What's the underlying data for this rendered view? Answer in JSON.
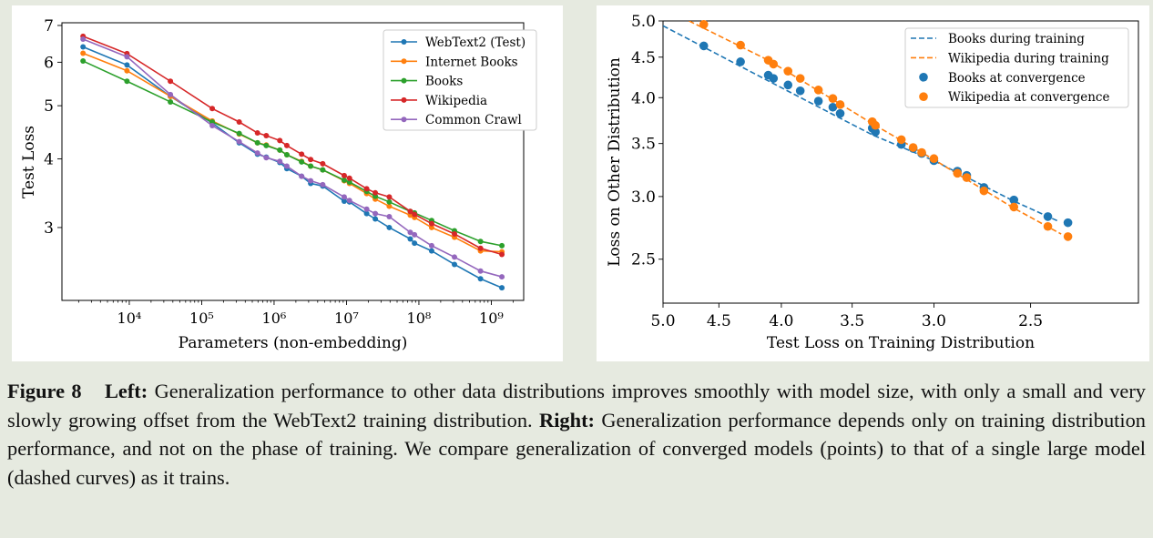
{
  "caption": {
    "figure_label": "Figure 8",
    "left_label": "Left:",
    "left_text": "Generalization performance to other data distributions improves smoothly with model size, with only a small and very slowly growing offset from the WebText2 training distribution.",
    "right_label": "Right:",
    "right_text": "Generalization performance depends only on training distribution performance, and not on the phase of training. We compare generalization of converged models (points) to that of a single large model (dashed curves) as it trains."
  },
  "chart_data": [
    {
      "type": "line",
      "xlabel": "Parameters (non-embedding)",
      "ylabel": "Test Loss",
      "xscale": "log",
      "yscale": "log",
      "xlim": [
        1175,
        2800000000.0
      ],
      "ylim": [
        2.21,
        7.08
      ],
      "x_ticks": [
        10000.0,
        100000.0,
        1000000.0,
        10000000.0,
        100000000.0,
        1000000000.0
      ],
      "x_tick_labels": [
        "10⁴",
        "10⁵",
        "10⁶",
        "10⁷",
        "10⁸",
        "10⁹"
      ],
      "y_ticks": [
        3,
        4,
        5,
        6,
        7
      ],
      "y_tick_labels": [
        "3",
        "4",
        "5",
        "6",
        "7"
      ],
      "grid": false,
      "legend_position": "top-right",
      "x": [
        2300.0,
        9300.0,
        37000.0,
        140000.0,
        330000.0,
        590000.0,
        780000.0,
        1200000.0,
        1500000.0,
        2400000.0,
        3200000.0,
        4700000.0,
        9300000.0,
        11000000.0,
        19000000.0,
        25000000.0,
        39000000.0,
        76000000.0,
        87000000.0,
        150000000.0,
        310000000.0,
        710000000.0,
        1400000000.0
      ],
      "series": [
        {
          "name": "WebText2 (Test)",
          "color": "#1f77b4",
          "values": [
            6.4,
            5.93,
            5.2,
            4.65,
            4.28,
            4.08,
            4.03,
            3.94,
            3.84,
            3.72,
            3.61,
            3.57,
            3.35,
            3.34,
            3.18,
            3.11,
            3.0,
            2.86,
            2.81,
            2.72,
            2.57,
            2.42,
            2.33
          ]
        },
        {
          "name": "Internet Books",
          "color": "#ff7f0e",
          "values": [
            6.23,
            5.79,
            5.2,
            4.69,
            4.44,
            4.28,
            4.24,
            4.15,
            4.07,
            3.96,
            3.88,
            3.82,
            3.65,
            3.61,
            3.46,
            3.38,
            3.28,
            3.16,
            3.13,
            3.0,
            2.88,
            2.72,
            2.71
          ]
        },
        {
          "name": "Books",
          "color": "#2ca02c",
          "values": [
            6.03,
            5.54,
            5.08,
            4.67,
            4.45,
            4.28,
            4.23,
            4.15,
            4.07,
            3.95,
            3.88,
            3.82,
            3.66,
            3.63,
            3.49,
            3.42,
            3.34,
            3.21,
            3.19,
            3.09,
            2.96,
            2.83,
            2.78
          ]
        },
        {
          "name": "Wikipedia",
          "color": "#d62728",
          "values": [
            6.69,
            6.22,
            5.54,
            4.94,
            4.67,
            4.46,
            4.41,
            4.32,
            4.23,
            4.08,
            3.99,
            3.92,
            3.73,
            3.69,
            3.53,
            3.47,
            3.41,
            3.21,
            3.17,
            3.05,
            2.92,
            2.75,
            2.68
          ]
        },
        {
          "name": "Common Crawl",
          "color": "#9467bd",
          "values": [
            6.61,
            6.14,
            5.24,
            4.6,
            4.3,
            4.1,
            4.02,
            3.96,
            3.88,
            3.72,
            3.65,
            3.59,
            3.41,
            3.36,
            3.24,
            3.18,
            3.14,
            2.94,
            2.91,
            2.78,
            2.65,
            2.5,
            2.44
          ]
        }
      ]
    },
    {
      "type": "scatter",
      "xlabel": "Test Loss on Training Distribution",
      "ylabel": "Loss on Other Distribution",
      "xscale": "log",
      "yscale": "log",
      "x_inverted": true,
      "xlim": [
        5.0,
        2.04
      ],
      "ylim": [
        2.2,
        5.0
      ],
      "x_ticks": [
        5.0,
        4.5,
        4.0,
        3.5,
        3.0,
        2.5
      ],
      "x_tick_labels": [
        "5.0",
        "4.5",
        "4.0",
        "3.5",
        "3.0",
        "2.5"
      ],
      "y_ticks": [
        2.5,
        3.0,
        3.5,
        4.0,
        4.5,
        5.0
      ],
      "y_tick_labels": [
        "2.5",
        "3.0",
        "3.5",
        "4.0",
        "4.5",
        "5.0"
      ],
      "grid": false,
      "legend_position": "top-right",
      "lines": [
        {
          "name": "Books during training",
          "color": "#1f77b4",
          "style": "dashed",
          "points": [
            [
              5.0,
              4.93
            ],
            [
              4.1,
              4.2
            ],
            [
              3.37,
              3.59
            ],
            [
              3.0,
              3.33
            ],
            [
              2.58,
              2.96
            ],
            [
              2.37,
              2.79
            ]
          ]
        },
        {
          "name": "Wikipedia during training",
          "color": "#ff7f0e",
          "style": "dashed",
          "points": [
            [
              4.76,
              5.0
            ],
            [
              4.1,
              4.46
            ],
            [
              3.37,
              3.71
            ],
            [
              3.0,
              3.34
            ],
            [
              2.58,
              2.9
            ],
            [
              2.36,
              2.69
            ]
          ]
        }
      ],
      "scatter": [
        {
          "name": "Books at convergence",
          "color": "#1f77b4",
          "x": [
            4.63,
            4.32,
            4.1,
            4.06,
            3.95,
            3.86,
            3.73,
            3.63,
            3.58,
            3.37,
            3.35,
            3.19,
            3.12,
            3.07,
            3.0,
            2.87,
            2.82,
            2.73,
            2.58,
            2.42,
            2.33
          ],
          "y": [
            4.65,
            4.44,
            4.27,
            4.23,
            4.15,
            4.08,
            3.96,
            3.89,
            3.82,
            3.66,
            3.62,
            3.49,
            3.45,
            3.4,
            3.33,
            3.23,
            3.19,
            3.08,
            2.97,
            2.83,
            2.78
          ]
        },
        {
          "name": "Wikipedia at convergence",
          "color": "#ff7f0e",
          "x": [
            4.63,
            4.32,
            4.1,
            4.06,
            3.95,
            3.86,
            3.73,
            3.63,
            3.58,
            3.37,
            3.35,
            3.19,
            3.12,
            3.07,
            3.0,
            2.87,
            2.82,
            2.73,
            2.58,
            2.42,
            2.33
          ],
          "y": [
            4.95,
            4.66,
            4.46,
            4.41,
            4.32,
            4.23,
            4.09,
            3.99,
            3.92,
            3.73,
            3.69,
            3.54,
            3.46,
            3.41,
            3.35,
            3.21,
            3.17,
            3.05,
            2.91,
            2.75,
            2.67
          ]
        }
      ]
    }
  ]
}
